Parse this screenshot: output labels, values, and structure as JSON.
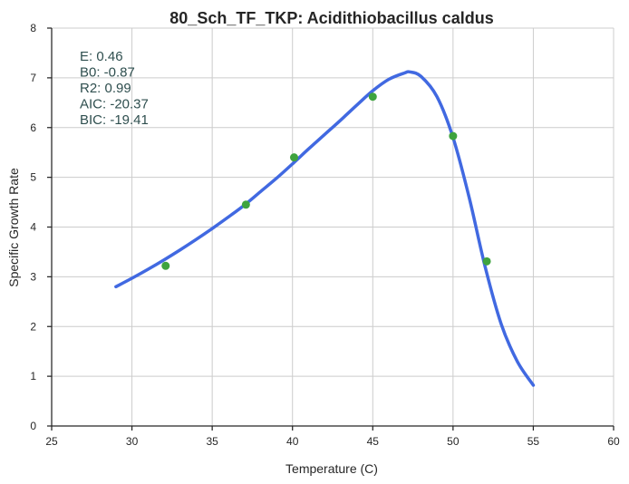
{
  "chart_data": {
    "type": "line",
    "title": "80_Sch_TF_TKP: Acidithiobacillus caldus",
    "xlabel": "Temperature (C)",
    "ylabel": "Specific Growth Rate",
    "xlim": [
      25,
      60
    ],
    "ylim": [
      0,
      8
    ],
    "xticks": [
      "25",
      "30",
      "35",
      "40",
      "45",
      "50",
      "55",
      "60"
    ],
    "yticks": [
      "0",
      "1",
      "2",
      "3",
      "4",
      "5",
      "6",
      "7",
      "8"
    ],
    "grid": true,
    "series": [
      {
        "kind": "line",
        "color": "#4169e1",
        "x": [
          29,
          30,
          31,
          32,
          33,
          34,
          35,
          36,
          37,
          38,
          39,
          40,
          41,
          42,
          43,
          44,
          45,
          46,
          47,
          47.3,
          48,
          49,
          50,
          51,
          52,
          53,
          54,
          55
        ],
        "y": [
          2.8,
          2.97,
          3.15,
          3.34,
          3.54,
          3.75,
          3.97,
          4.2,
          4.44,
          4.71,
          4.98,
          5.27,
          5.57,
          5.86,
          6.15,
          6.45,
          6.74,
          6.97,
          7.1,
          7.12,
          7.03,
          6.62,
          5.8,
          4.6,
          3.2,
          2.05,
          1.3,
          0.82
        ]
      },
      {
        "kind": "scatter",
        "color": "#3ea33e",
        "x": [
          32.1,
          37.1,
          40.1,
          45.0,
          50.0,
          52.1
        ],
        "y": [
          3.22,
          4.45,
          5.4,
          6.62,
          5.83,
          3.31
        ]
      }
    ],
    "annotation": {
      "lines": [
        "E:  0.46",
        "B0:  -0.87",
        "R2:  0.99",
        "AIC: -20.37",
        "BIC: -19.41"
      ]
    }
  }
}
